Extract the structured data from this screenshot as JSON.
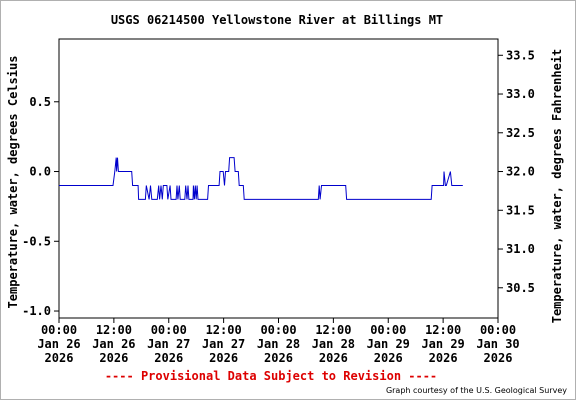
{
  "chart_data": {
    "type": "line",
    "title": "USGS 06214500 Yellowstone River at Billings MT",
    "ylabel_left": "Temperature, water, degrees Celsius",
    "ylabel_right": "Temperature, water, degrees Fahrenheit",
    "xlabel": "",
    "provisional_note": "---- Provisional Data Subject to Revision ----",
    "credit": "Graph courtesy of the U.S. Geological Survey",
    "ylim": [
      -1.05,
      0.95
    ],
    "ylim_fahrenheit": [
      30.11,
      33.71
    ],
    "xlim_hours": [
      0,
      96
    ],
    "grid": false,
    "line_color": "#0000cc",
    "y_ticks": [
      {
        "value": -1.0,
        "label": "-1.0"
      },
      {
        "value": -0.5,
        "label": "-0.5"
      },
      {
        "value": 0.0,
        "label": "0.0"
      },
      {
        "value": 0.5,
        "label": "0.5"
      }
    ],
    "y_ticks_right": [
      {
        "value": 30.5,
        "label": "30.5"
      },
      {
        "value": 31.0,
        "label": "31.0"
      },
      {
        "value": 31.5,
        "label": "31.5"
      },
      {
        "value": 32.0,
        "label": "32.0"
      },
      {
        "value": 32.5,
        "label": "32.5"
      },
      {
        "value": 33.0,
        "label": "33.0"
      },
      {
        "value": 33.5,
        "label": "33.5"
      }
    ],
    "x_ticks": [
      {
        "hour": 0,
        "lines": [
          "00:00",
          "Jan 26",
          "2026"
        ]
      },
      {
        "hour": 12,
        "lines": [
          "12:00",
          "Jan 26",
          "2026"
        ]
      },
      {
        "hour": 24,
        "lines": [
          "00:00",
          "Jan 27",
          "2026"
        ]
      },
      {
        "hour": 36,
        "lines": [
          "12:00",
          "Jan 27",
          "2026"
        ]
      },
      {
        "hour": 48,
        "lines": [
          "00:00",
          "Jan 28",
          "2026"
        ]
      },
      {
        "hour": 60,
        "lines": [
          "12:00",
          "Jan 28",
          "2026"
        ]
      },
      {
        "hour": 72,
        "lines": [
          "00:00",
          "Jan 29",
          "2026"
        ]
      },
      {
        "hour": 84,
        "lines": [
          "12:00",
          "Jan 29",
          "2026"
        ]
      },
      {
        "hour": 96,
        "lines": [
          "00:00",
          "Jan 30",
          "2026"
        ]
      }
    ],
    "series": [
      {
        "x": [
          0,
          11.8,
          12.2,
          12.5,
          12.6,
          12.8,
          13.0,
          13.2,
          15.9,
          16.1,
          17.3,
          17.4,
          18.9,
          19.1,
          19.7,
          20.0,
          20.3,
          21.5,
          21.8,
          22.0,
          22.3,
          22.6,
          22.8,
          23.6,
          23.8,
          24.3,
          24.5,
          25.6,
          25.8,
          26.0,
          26.3,
          26.5,
          27.5,
          27.7,
          28.0,
          28.2,
          28.4,
          29.3,
          29.4,
          29.6,
          29.8,
          30.0,
          30.2,
          30.4,
          32.5,
          32.7,
          35.0,
          35.2,
          35.9,
          36.2,
          36.4,
          37.1,
          37.3,
          38.3,
          38.5,
          39.2,
          39.4,
          40.3,
          40.5,
          41.1,
          41.3,
          56.7,
          56.9,
          57.1,
          57.4,
          57.8,
          62.7,
          62.9,
          81.4,
          81.6,
          84.1,
          84.2,
          84.5,
          84.7,
          85.6,
          85.9,
          86.4,
          86.7,
          88.3
        ],
        "y": [
          -0.1,
          -0.1,
          0.0,
          0.1,
          0.0,
          0.1,
          0.0,
          0.0,
          0.0,
          -0.1,
          -0.1,
          -0.2,
          -0.2,
          -0.1,
          -0.2,
          -0.1,
          -0.2,
          -0.2,
          -0.1,
          -0.2,
          -0.1,
          -0.2,
          -0.1,
          -0.1,
          -0.2,
          -0.1,
          -0.2,
          -0.2,
          -0.1,
          -0.2,
          -0.1,
          -0.2,
          -0.2,
          -0.1,
          -0.2,
          -0.1,
          -0.2,
          -0.2,
          -0.1,
          -0.2,
          -0.1,
          -0.2,
          -0.1,
          -0.2,
          -0.2,
          -0.1,
          -0.1,
          0.0,
          0.0,
          -0.1,
          0.0,
          0.0,
          0.1,
          0.1,
          0.0,
          0.0,
          -0.1,
          -0.1,
          -0.2,
          -0.2,
          -0.2,
          -0.2,
          -0.1,
          -0.2,
          -0.1,
          -0.1,
          -0.1,
          -0.2,
          -0.2,
          -0.1,
          -0.1,
          0.0,
          -0.1,
          -0.1,
          0.0,
          -0.1,
          -0.1,
          -0.1,
          -0.1
        ]
      }
    ]
  }
}
